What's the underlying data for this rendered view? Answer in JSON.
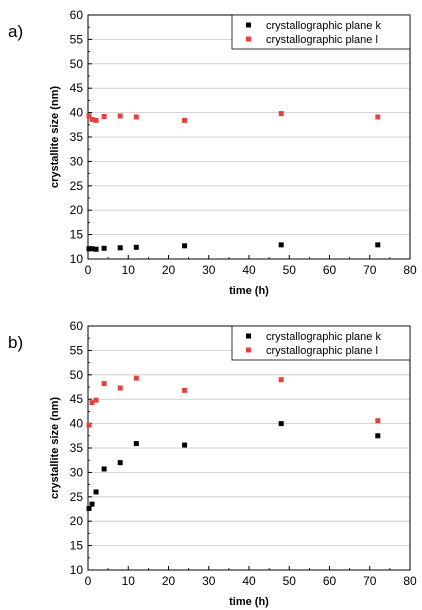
{
  "chart_data": [
    {
      "panel": "a)",
      "type": "scatter",
      "xlabel": "time (h)",
      "ylabel": "crystallite size (nm)",
      "xlim": [
        0,
        80
      ],
      "ylim": [
        10,
        60
      ],
      "x_ticks": [
        "0",
        "10",
        "20",
        "30",
        "40",
        "50",
        "60",
        "70",
        "80"
      ],
      "y_ticks": [
        "10",
        "15",
        "20",
        "25",
        "30",
        "35",
        "40",
        "45",
        "50",
        "55",
        "60"
      ],
      "grid": true,
      "legend_position": "top-right",
      "series": [
        {
          "name": "crystallographic plane k",
          "color": "#000000",
          "marker": "square",
          "points": [
            [
              0.25,
              12.1
            ],
            [
              1,
              12.1
            ],
            [
              2,
              12.0
            ],
            [
              4,
              12.2
            ],
            [
              8,
              12.3
            ],
            [
              12,
              12.4
            ],
            [
              24,
              12.7
            ],
            [
              48,
              12.9
            ],
            [
              72,
              12.9
            ]
          ]
        },
        {
          "name": "crystallographic plane l",
          "color": "#e8413c",
          "marker": "square",
          "points": [
            [
              0.25,
              39.3
            ],
            [
              1,
              38.6
            ],
            [
              2,
              38.4
            ],
            [
              4,
              39.2
            ],
            [
              8,
              39.3
            ],
            [
              12,
              39.1
            ],
            [
              24,
              38.4
            ],
            [
              48,
              39.8
            ],
            [
              72,
              39.1
            ]
          ]
        }
      ]
    },
    {
      "panel": "b)",
      "type": "scatter",
      "xlabel": "time (h)",
      "ylabel": "crystallite size (nm)",
      "xlim": [
        0,
        80
      ],
      "ylim": [
        10,
        60
      ],
      "x_ticks": [
        "0",
        "10",
        "20",
        "30",
        "40",
        "50",
        "60",
        "70",
        "80"
      ],
      "y_ticks": [
        "10",
        "15",
        "20",
        "25",
        "30",
        "35",
        "40",
        "45",
        "50",
        "55",
        "60"
      ],
      "grid": true,
      "legend_position": "top-right",
      "series": [
        {
          "name": "crystallographic plane k",
          "color": "#000000",
          "marker": "square",
          "points": [
            [
              0.25,
              22.6
            ],
            [
              1,
              23.5
            ],
            [
              2,
              26.0
            ],
            [
              4,
              30.7
            ],
            [
              8,
              32.0
            ],
            [
              12,
              35.9
            ],
            [
              24,
              35.6
            ],
            [
              48,
              40.0
            ],
            [
              72,
              37.5
            ]
          ]
        },
        {
          "name": "crystallographic plane l",
          "color": "#e8413c",
          "marker": "square",
          "points": [
            [
              0.25,
              39.7
            ],
            [
              1,
              44.3
            ],
            [
              2,
              44.8
            ],
            [
              4,
              48.2
            ],
            [
              8,
              47.3
            ],
            [
              12,
              49.3
            ],
            [
              24,
              46.8
            ],
            [
              48,
              49.0
            ],
            [
              72,
              40.6
            ]
          ]
        }
      ]
    }
  ]
}
